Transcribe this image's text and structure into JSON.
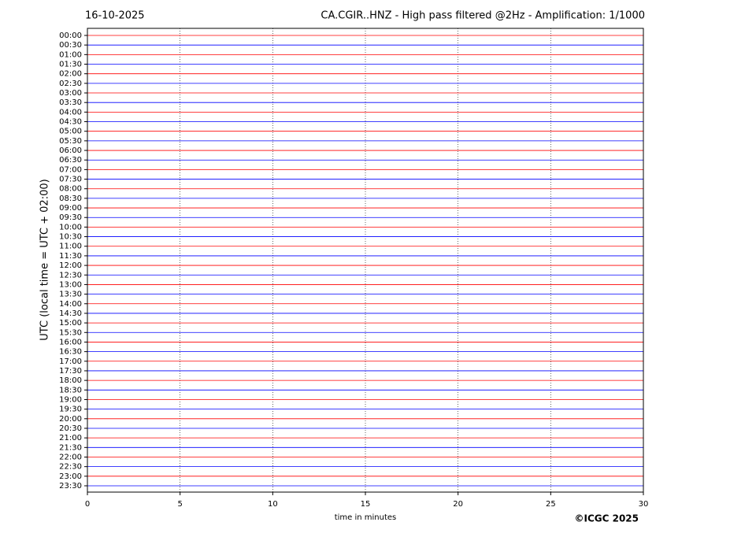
{
  "chart_data": {
    "type": "helicorder",
    "date": "16-10-2025",
    "title": "CA.CGIR..HNZ - High pass filtered @2Hz - Amplification: 1/1000",
    "xlabel": "time in minutes",
    "ylabel": "UTC (local time = UTC + 02:00)",
    "copyright": "©ICGC 2025",
    "categories": [
      "00:00",
      "00:30",
      "01:00",
      "01:30",
      "02:00",
      "02:30",
      "03:00",
      "03:30",
      "04:00",
      "04:30",
      "05:00",
      "05:30",
      "06:00",
      "06:30",
      "07:00",
      "07:30",
      "08:00",
      "08:30",
      "09:00",
      "09:30",
      "10:00",
      "10:30",
      "11:00",
      "11:30",
      "12:00",
      "12:30",
      "13:00",
      "13:30",
      "14:00",
      "14:30",
      "15:00",
      "15:30",
      "16:00",
      "16:30",
      "17:00",
      "17:30",
      "18:00",
      "18:30",
      "19:00",
      "19:30",
      "20:00",
      "20:30",
      "21:00",
      "21:30",
      "22:00",
      "22:30",
      "23:00",
      "23:30"
    ],
    "row_colors": [
      "#ff0000",
      "#0000ff"
    ],
    "xlim": [
      0,
      30
    ],
    "xticks": [
      0,
      5,
      10,
      15,
      20,
      25,
      30
    ],
    "grid": true
  }
}
